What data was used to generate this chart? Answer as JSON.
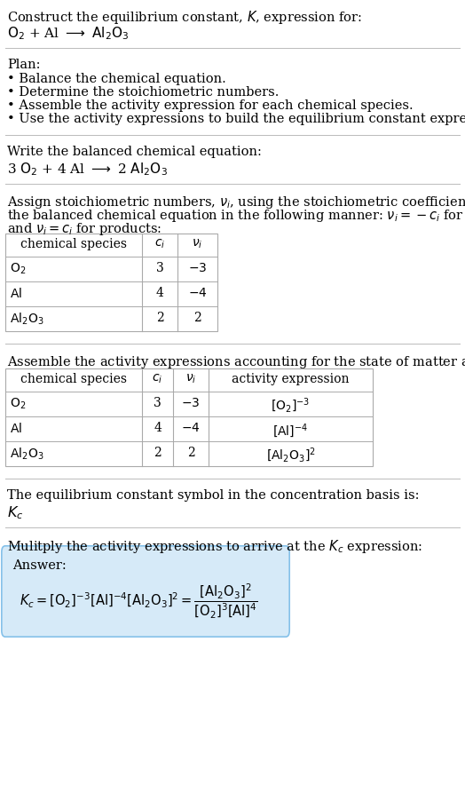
{
  "title_line1": "Construct the equilibrium constant, $K$, expression for:",
  "title_line2_plain": "O",
  "plan_header": "Plan:",
  "plan_bullets": [
    "• Balance the chemical equation.",
    "• Determine the stoichiometric numbers.",
    "• Assemble the activity expression for each chemical species.",
    "• Use the activity expressions to build the equilibrium constant expression."
  ],
  "balanced_header": "Write the balanced chemical equation:",
  "stoich_intro_1": "Assign stoichiometric numbers, $\\nu_i$, using the stoichiometric coefficients, $c_i$, from",
  "stoich_intro_2": "the balanced chemical equation in the following manner: $\\nu_i = -c_i$ for reactants",
  "stoich_intro_3": "and $\\nu_i = c_i$ for products:",
  "table1_headers": [
    "chemical species",
    "$c_i$",
    "$\\nu_i$"
  ],
  "table1_rows": [
    [
      "$\\mathrm{O_2}$",
      "3",
      "$-3$"
    ],
    [
      "$\\mathrm{Al}$",
      "4",
      "$-4$"
    ],
    [
      "$\\mathrm{Al_2O_3}$",
      "2",
      "2"
    ]
  ],
  "assemble_intro": "Assemble the activity expressions accounting for the state of matter and $\\nu_i$:",
  "table2_headers": [
    "chemical species",
    "$c_i$",
    "$\\nu_i$",
    "activity expression"
  ],
  "table2_rows": [
    [
      "$\\mathrm{O_2}$",
      "3",
      "$-3$",
      "$[\\mathrm{O_2}]^{-3}$"
    ],
    [
      "$\\mathrm{Al}$",
      "4",
      "$-4$",
      "$[\\mathrm{Al}]^{-4}$"
    ],
    [
      "$\\mathrm{Al_2O_3}$",
      "2",
      "2",
      "$[\\mathrm{Al_2O_3}]^{2}$"
    ]
  ],
  "kc_line": "The equilibrium constant symbol in the concentration basis is:",
  "kc_symbol": "$K_c$",
  "multiply_line": "Mulitply the activity expressions to arrive at the $K_c$ expression:",
  "answer_label": "Answer:",
  "answer_box_color": "#d6eaf8",
  "answer_border_color": "#85c1e9",
  "bg_color": "#ffffff",
  "text_color": "#000000",
  "table_border_color": "#aaaaaa",
  "separator_color": "#bbbbbb",
  "font_size": 10.5,
  "small_font_size": 10.0
}
